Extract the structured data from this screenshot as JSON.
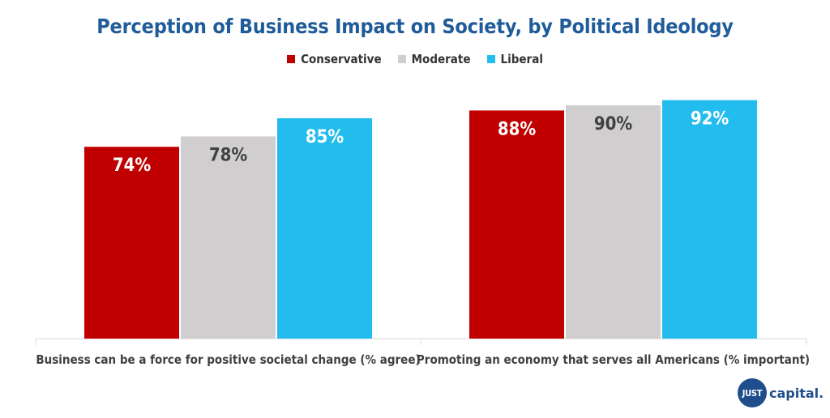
{
  "colors": {
    "title": "#1f5c99",
    "conservative": "#c00000",
    "moderate": "#d0cece",
    "liberal": "#22bdee",
    "axis": "#d9d9d9",
    "label_dark": "#404040",
    "label_light": "#ffffff"
  },
  "logo": {
    "circle_text": "JUST",
    "word": "capital",
    "dot": "."
  },
  "chart_data": {
    "type": "bar",
    "title": "Perception of Business Impact on Society, by Political Ideology",
    "categories": [
      "Business can be a force for positive societal change (% agree)",
      "Promoting an economy that serves all Americans (% important)"
    ],
    "series": [
      {
        "name": "Conservative",
        "values": [
          74,
          88
        ],
        "labels": [
          "74%",
          "88%"
        ],
        "color": "#c00000",
        "label_color": "#ffffff"
      },
      {
        "name": "Moderate",
        "values": [
          78,
          90
        ],
        "labels": [
          "78%",
          "90%"
        ],
        "color": "#d0cece",
        "label_color": "#404040"
      },
      {
        "name": "Liberal",
        "values": [
          85,
          92
        ],
        "labels": [
          "85%",
          "92%"
        ],
        "color": "#22bdee",
        "label_color": "#ffffff"
      }
    ],
    "legend_position": "top-center",
    "grid": false,
    "ylim": [
      0,
      100
    ]
  }
}
